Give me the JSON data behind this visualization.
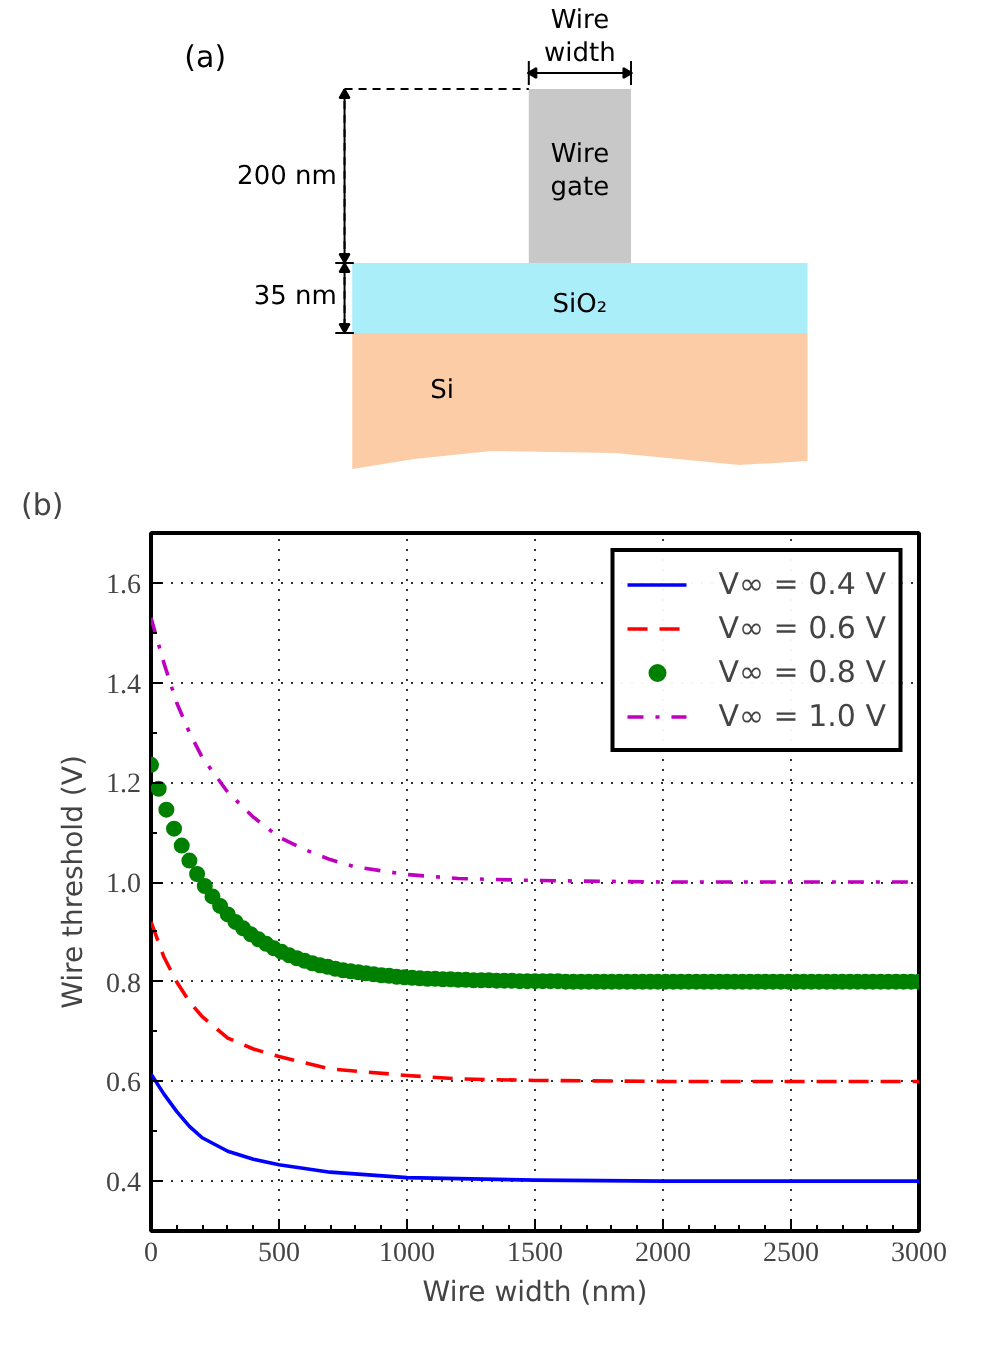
{
  "chart_data": [
    {
      "type": "other",
      "title": "(a)",
      "annotations": [
        "Wire\nwidth",
        "200 nm",
        "Wire\ngate",
        "35 nm",
        "SiO₂",
        "Si"
      ]
    },
    {
      "type": "line",
      "title": "(b)",
      "xlabel": "Wire width (nm)",
      "ylabel": "Wire threshold (V)",
      "xlim": [
        0,
        3000
      ],
      "ylim": [
        0.3,
        1.7
      ],
      "xticks": [
        0,
        500,
        1000,
        1500,
        2000,
        2500,
        3000
      ],
      "yticks": [
        0.4,
        0.6,
        0.8,
        {
          "value": 1,
          "label": "1.0"
        },
        1.2,
        1.4,
        1.6
      ],
      "grid": true,
      "legend": "top right",
      "series": [
        {
          "name": "V∞ = 0.4 V",
          "color": "#0000ff",
          "line_style": "solid",
          "x": [
            0,
            50,
            100,
            150,
            200,
            300,
            400,
            500,
            700,
            1000,
            1500,
            2000,
            3000
          ],
          "values": [
            0.615,
            0.575,
            0.54,
            0.51,
            0.487,
            0.46,
            0.444,
            0.433,
            0.418,
            0.407,
            0.402,
            0.4,
            0.4
          ]
        },
        {
          "name": "V∞ = 0.6 V",
          "color": "#ff0000",
          "line_style": "dashed",
          "x": [
            0,
            50,
            100,
            150,
            200,
            300,
            400,
            500,
            700,
            1000,
            1200,
            1500,
            2000,
            3000
          ],
          "values": [
            0.92,
            0.85,
            0.8,
            0.76,
            0.73,
            0.687,
            0.665,
            0.65,
            0.625,
            0.612,
            0.605,
            0.602,
            0.6,
            0.6
          ]
        },
        {
          "name": "V∞ = 0.8 V",
          "color": "#008000",
          "type": "scatter",
          "marker": "circle",
          "x": [
            0,
            30,
            60,
            90,
            120,
            150,
            180,
            210,
            240,
            270,
            300,
            330,
            360,
            390,
            420,
            450,
            480,
            510,
            540,
            570,
            600,
            630,
            660,
            690,
            720,
            750,
            780,
            810,
            840,
            870,
            900,
            930,
            960,
            990,
            1020,
            1050,
            1080,
            1110,
            1140,
            1170,
            1200,
            1230,
            1260,
            1290,
            1320,
            1350,
            1380,
            1410,
            1440,
            1470,
            1500,
            1530,
            1560,
            1590,
            1620,
            1650,
            1680,
            1710,
            1740,
            1770,
            1800,
            1830,
            1860,
            1890,
            1920,
            1950,
            1980,
            2010,
            2040,
            2070,
            2100,
            2130,
            2160,
            2190,
            2220,
            2250,
            2280,
            2310,
            2340,
            2370,
            2400,
            2430,
            2460,
            2490,
            2520,
            2550,
            2580,
            2610,
            2640,
            2670,
            2700,
            2730,
            2760,
            2790,
            2820,
            2850,
            2880,
            2910,
            2940,
            2970,
            3000
          ],
          "values": [
            1.235,
            1.187,
            1.145,
            1.107,
            1.073,
            1.043,
            1.016,
            0.992,
            0.971,
            0.952,
            0.935,
            0.92,
            0.907,
            0.895,
            0.885,
            0.876,
            0.867,
            0.86,
            0.853,
            0.847,
            0.842,
            0.837,
            0.833,
            0.83,
            0.826,
            0.823,
            0.821,
            0.819,
            0.817,
            0.815,
            0.813,
            0.812,
            0.81,
            0.809,
            0.808,
            0.807,
            0.806,
            0.806,
            0.805,
            0.805,
            0.804,
            0.804,
            0.803,
            0.803,
            0.803,
            0.802,
            0.802,
            0.802,
            0.801,
            0.801,
            0.801,
            0.801,
            0.801,
            0.801,
            0.8,
            0.8,
            0.8,
            0.8,
            0.8,
            0.8,
            0.8,
            0.8,
            0.8,
            0.8,
            0.8,
            0.8,
            0.8,
            0.8,
            0.8,
            0.8,
            0.8,
            0.8,
            0.8,
            0.8,
            0.8,
            0.8,
            0.8,
            0.8,
            0.8,
            0.8,
            0.8,
            0.8,
            0.8,
            0.8,
            0.8,
            0.8,
            0.8,
            0.8,
            0.8,
            0.8,
            0.8,
            0.8,
            0.8,
            0.8,
            0.8,
            0.8,
            0.8,
            0.8,
            0.8,
            0.8,
            0.8
          ]
        },
        {
          "name": "V∞ = 1.0 V",
          "color": "#bf00bf",
          "line_style": "dashdot",
          "x": [
            0,
            50,
            100,
            150,
            200,
            300,
            400,
            500,
            600,
            700,
            800,
            1000,
            1200,
            1500,
            2000,
            3000
          ],
          "values": [
            1.53,
            1.44,
            1.36,
            1.3,
            1.25,
            1.18,
            1.13,
            1.09,
            1.065,
            1.045,
            1.03,
            1.015,
            1.007,
            1.003,
            1.0,
            1.0
          ]
        }
      ]
    }
  ]
}
